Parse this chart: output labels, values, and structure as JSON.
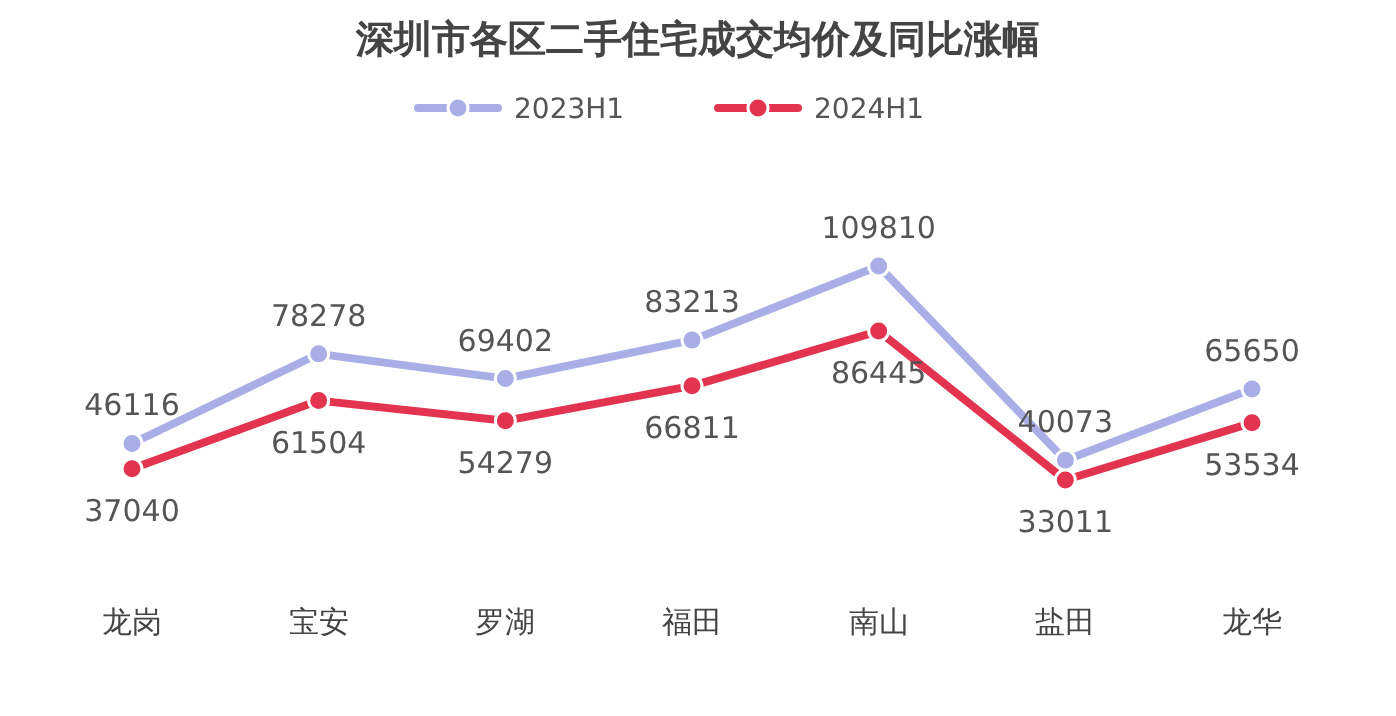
{
  "chart_data": {
    "type": "line",
    "title": "深圳市各区二手住宅成交均价及同比涨幅",
    "categories": [
      "龙岗",
      "宝安",
      "罗湖",
      "福田",
      "南山",
      "盐田",
      "龙华"
    ],
    "series": [
      {
        "name": "2023H1",
        "color": "#a9afe6",
        "values": [
          46116,
          78278,
          69402,
          83213,
          109810,
          40073,
          65650
        ]
      },
      {
        "name": "2024H1",
        "color": "#e2334f",
        "values": [
          37040,
          61504,
          54279,
          66811,
          86445,
          33011,
          53534
        ]
      }
    ],
    "data_labels": true,
    "legend": "top",
    "marker": "circle",
    "grid": false
  }
}
